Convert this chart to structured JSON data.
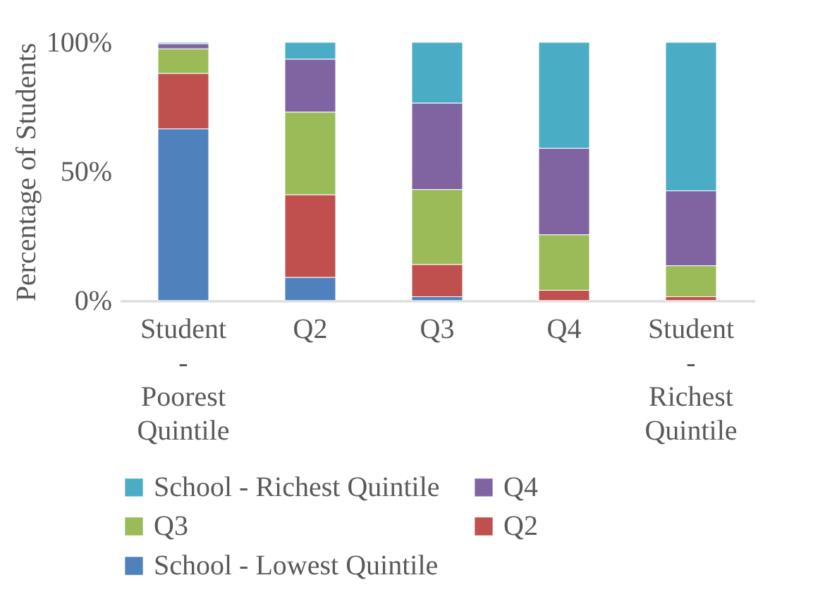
{
  "chart_data": {
    "type": "bar",
    "stacked": true,
    "ylabel": "Percentage of Students",
    "categories": [
      "Student - Poorest Quintile",
      "Q2",
      "Q3",
      "Q4",
      "Student - Richest Quintile"
    ],
    "series": [
      {
        "name": "School - Lowest Quintile",
        "color": "#4f81bd",
        "values": [
          66.5,
          9,
          1.5,
          0,
          0
        ]
      },
      {
        "name": "Q2",
        "color": "#c0504d",
        "values": [
          21.5,
          32,
          12.5,
          4,
          1.5
        ]
      },
      {
        "name": "Q3",
        "color": "#9bbb59",
        "values": [
          9.5,
          32,
          29,
          21.5,
          12
        ]
      },
      {
        "name": "Q4",
        "color": "#8064a2",
        "values": [
          2,
          20.5,
          33.5,
          33.5,
          29
        ]
      },
      {
        "name": "School - Richest Quintile",
        "color": "#4bacc6",
        "values": [
          0.5,
          6.5,
          23.5,
          41,
          57.5
        ]
      }
    ],
    "ylim": [
      0,
      100
    ],
    "yticks": [
      {
        "value": 0,
        "label": "0%"
      },
      {
        "value": 50,
        "label": "50%"
      },
      {
        "value": 100,
        "label": "100%"
      }
    ],
    "grid": false,
    "legend": "bottom"
  }
}
